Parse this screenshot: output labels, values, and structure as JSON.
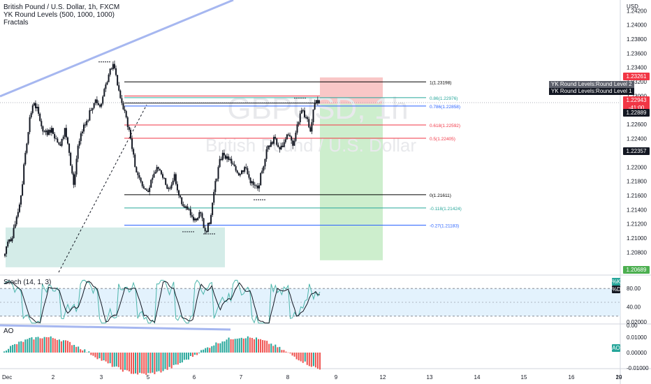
{
  "header": {
    "title": "British Pound / U.S. Dollar, 1h, FXCM",
    "indicators": [
      "YK Round Levels (500, 1000, 1000)",
      "Fractals"
    ]
  },
  "watermark": {
    "symbol": "GBPUSD, 1h",
    "name": "British Pound / U.S. Dollar"
  },
  "price_axis": {
    "currency": "USD",
    "ticks": [
      "1.24200",
      "1.24000",
      "1.23800",
      "1.23600",
      "1.23400",
      "1.23200",
      "1.23000",
      "1.22800",
      "1.22600",
      "1.22400",
      "1.22200",
      "1.22000",
      "1.21800",
      "1.21600",
      "1.21400",
      "1.21200",
      "1.21000",
      "1.20800"
    ],
    "labels": [
      {
        "text": "1.23261",
        "bg": "#f23645",
        "fg": "#ffffff"
      },
      {
        "text": "1.22943\n-41:00",
        "bg": "#f23645",
        "fg": "#ffffff"
      },
      {
        "text": "1.22889",
        "bg": "#131722",
        "fg": "#ffffff"
      },
      {
        "text": "1.22357",
        "bg": "#131722",
        "fg": "#ffffff"
      },
      {
        "text": "1.20689",
        "bg": "#4caf50",
        "fg": "#ffffff"
      }
    ]
  },
  "round_levels_tooltips": [
    "YK Round Levels:Round Level 2",
    "YK Round Levels:Round Level 1"
  ],
  "stoch": {
    "label": "Stoch (14, 1, 3)",
    "ticks": [
      "80.00",
      "40.00",
      "0.00"
    ],
    "badges": [
      "%K",
      "%D"
    ]
  },
  "ao": {
    "label": "AO",
    "ticks": [
      "0.02000",
      "0.01000",
      "0.00000",
      "-0.01000"
    ],
    "badge": "AO"
  },
  "time_axis": [
    "Dec",
    "2",
    "3",
    "5",
    "6",
    "7",
    "8",
    "9",
    "12",
    "13",
    "14",
    "15",
    "16",
    "19",
    "20"
  ],
  "colors": {
    "bull": "#26a69a",
    "bear": "#ef5350",
    "candle": "#131722",
    "fib_black": "#000000",
    "fib_teal": "#26a69a",
    "fib_blue": "#2962ff",
    "fib_red": "#f23645",
    "trend": "#a6b7f0",
    "stop_zone": "#f7b9b9",
    "target_zone": "#c8ecc8",
    "demand_zone": "#cfeae6",
    "k_line": "#4db6ac",
    "d_line": "#131722",
    "stoch_band": "#e3f2fd"
  },
  "chart_data": {
    "type": "candlestick",
    "symbol": "GBPUSD",
    "timeframe": "1h",
    "ylim": [
      1.205,
      1.2435
    ],
    "x_ticks": [
      "Dec",
      "2",
      "3",
      "5",
      "6",
      "7",
      "8",
      "9",
      "12",
      "13",
      "14",
      "15",
      "16",
      "19",
      "20"
    ],
    "close_path": [
      1.2075,
      1.2095,
      1.21,
      1.213,
      1.216,
      1.222,
      1.227,
      1.229,
      1.2275,
      1.225,
      1.2245,
      1.2255,
      1.224,
      1.223,
      1.2255,
      1.222,
      1.2175,
      1.223,
      1.225,
      1.2265,
      1.228,
      1.2295,
      1.2285,
      1.231,
      1.233,
      1.2345,
      1.2315,
      1.229,
      1.227,
      1.224,
      1.22,
      1.2185,
      1.217,
      1.2165,
      1.2185,
      1.22,
      1.219,
      1.2175,
      1.217,
      1.219,
      1.216,
      1.2145,
      1.214,
      1.213,
      1.2125,
      1.2135,
      1.211,
      1.212,
      1.2165,
      1.22,
      1.222,
      1.2215,
      1.2205,
      1.2195,
      1.219,
      1.22,
      1.2185,
      1.2175,
      1.217,
      1.2195,
      1.2225,
      1.2235,
      1.224,
      1.2225,
      1.2235,
      1.2245,
      1.223,
      1.226,
      1.228,
      1.227,
      1.225,
      1.229,
      1.2294
    ],
    "fibonacci": [
      {
        "level": "1",
        "price": 1.23198,
        "label": "1(1.23198)",
        "color": "#000000"
      },
      {
        "level": "0.86",
        "price": 1.22976,
        "label": "0.86(1.22976)",
        "color": "#26a69a"
      },
      {
        "level": "0.786",
        "price": 1.22858,
        "label": "0.786(1.22858)",
        "color": "#2962ff"
      },
      {
        "level": "0.618",
        "price": 1.22592,
        "label": "0.618(1.22592)",
        "color": "#f23645"
      },
      {
        "level": "0.5",
        "price": 1.22405,
        "label": "0.5(1.22405)",
        "color": "#f23645"
      },
      {
        "level": "0",
        "price": 1.21611,
        "label": "0(1.21611)",
        "color": "#000000"
      },
      {
        "level": "-0.118",
        "price": 1.21424,
        "label": "-0.118(1.21424)",
        "color": "#26a69a"
      },
      {
        "level": "-0.27",
        "price": 1.21183,
        "label": "-0.27(1.21183)",
        "color": "#2962ff"
      }
    ],
    "short_position": {
      "entry": 1.22889,
      "stop": 1.23261,
      "target": 1.20689
    }
  }
}
